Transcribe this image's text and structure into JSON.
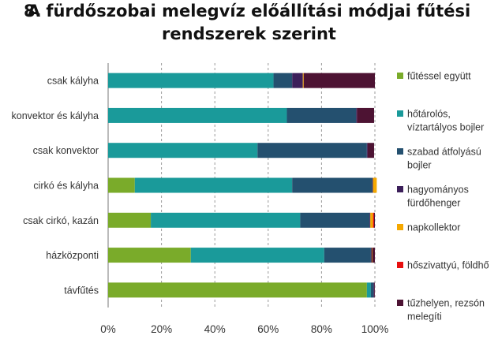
{
  "title": {
    "number": "8.",
    "line1": "A fürdőszobai melegvíz előállítási módjai fűtési",
    "line2": "rendszerek szerint"
  },
  "chart_data": {
    "type": "bar",
    "orientation": "horizontal",
    "stacked": true,
    "title": "A fürdőszobai melegvíz előállítási módjai fűtési rendszerek szerint",
    "categories": [
      "csak kályha",
      "konvektor és kályha",
      "csak konvektor",
      "cirkó és kályha",
      "csak cirkó, kazán",
      "házközponti",
      "távfűtés"
    ],
    "xlim": [
      0,
      100
    ],
    "xticks": [
      "0%",
      "20%",
      "40%",
      "60%",
      "80%",
      "100%"
    ],
    "grid": true,
    "legend_position": "right",
    "series": [
      {
        "name": "fűtéssel együtt",
        "legend_lines": [
          "fűtéssel együtt"
        ],
        "color": "#7aab2a",
        "values": [
          0,
          0,
          0,
          10,
          16,
          31,
          97
        ]
      },
      {
        "name": "hőtárolós, víztartályos bojler",
        "legend_lines": [
          "hőtárolós,",
          "víztartályos bojler"
        ],
        "color": "#1a9a9a",
        "values": [
          62,
          67,
          56,
          59,
          56,
          50,
          1.5
        ]
      },
      {
        "name": "szabad átfolyású bojler",
        "legend_lines": [
          "szabad átfolyású",
          "bojler"
        ],
        "color": "#24506f",
        "values": [
          7,
          26,
          41,
          30,
          26,
          17.5,
          1
        ]
      },
      {
        "name": "hagyományos fürdőhenger",
        "legend_lines": [
          "hagyományos",
          "fürdőhenger"
        ],
        "color": "#3c1f5a",
        "values": [
          4,
          0.3,
          0.3,
          0.3,
          0.3,
          0.3,
          0.3
        ]
      },
      {
        "name": "napkollektor",
        "legend_lines": [
          "napkollektor"
        ],
        "color": "#f5a800",
        "values": [
          0.3,
          0,
          0,
          1.4,
          1,
          0.2,
          0
        ]
      },
      {
        "name": "hőszivattyú, földhő",
        "legend_lines": [
          "hőszivattyú, földhő"
        ],
        "color": "#e81010",
        "values": [
          0,
          0,
          0,
          0,
          0.4,
          0,
          0
        ]
      },
      {
        "name": "tűzhelyen, rezsón melegíti",
        "legend_lines": [
          "tűzhelyen, rezsón",
          "melegíti"
        ],
        "color": "#4d1333",
        "values": [
          26.7,
          6.4,
          2.4,
          0,
          0.3,
          1,
          0.2
        ]
      }
    ]
  }
}
